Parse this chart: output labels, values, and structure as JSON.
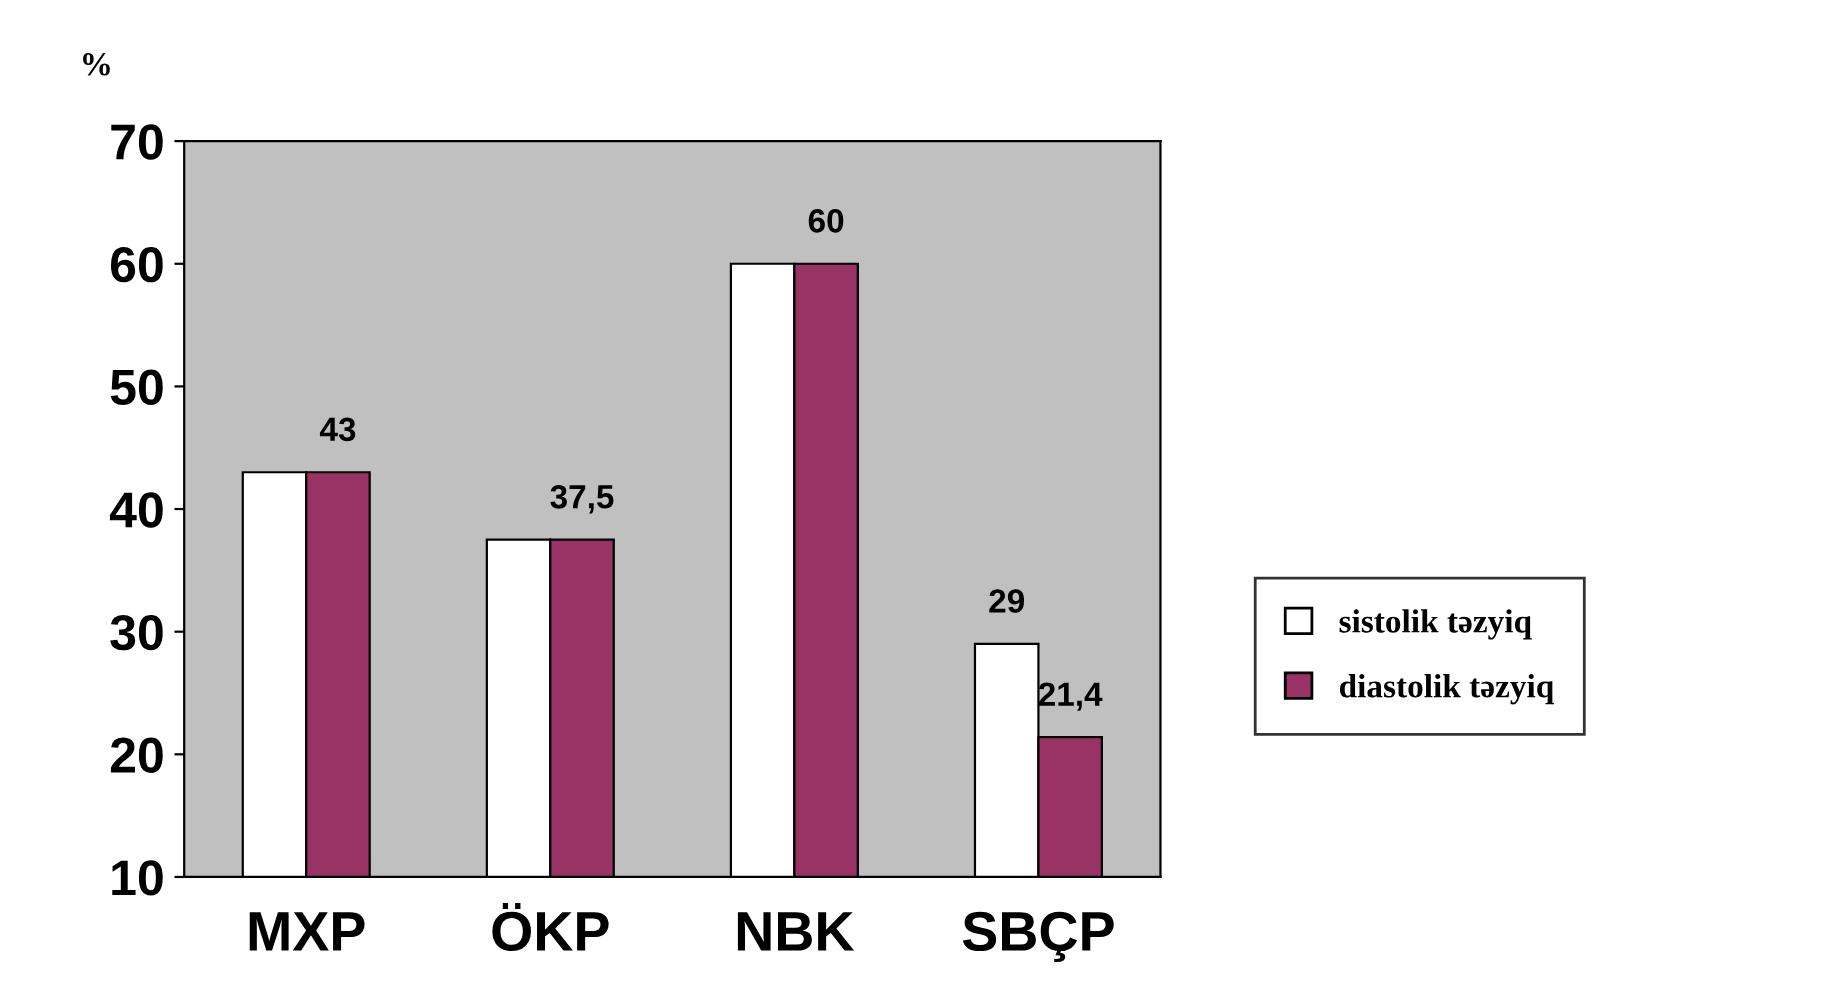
{
  "chart_data": {
    "type": "bar",
    "ylabel": "%",
    "categories": [
      "MXP",
      "ÖKP",
      "NBK",
      "SBÇP"
    ],
    "series": [
      {
        "name": "sistolik təzyiq",
        "color": "#ffffff",
        "values": [
          43,
          37.5,
          60,
          29
        ],
        "value_labels": [
          null,
          null,
          null,
          "29"
        ]
      },
      {
        "name": "diastolik təzyiq",
        "color": "#993366",
        "values": [
          43,
          37.5,
          60,
          21.4
        ],
        "value_labels": [
          "43",
          "37,5",
          "60",
          "21,4"
        ]
      }
    ],
    "ylim": [
      10,
      70
    ],
    "yticks": [
      10,
      20,
      30,
      40,
      50,
      60,
      70
    ],
    "grid": false,
    "legend": "right"
  }
}
